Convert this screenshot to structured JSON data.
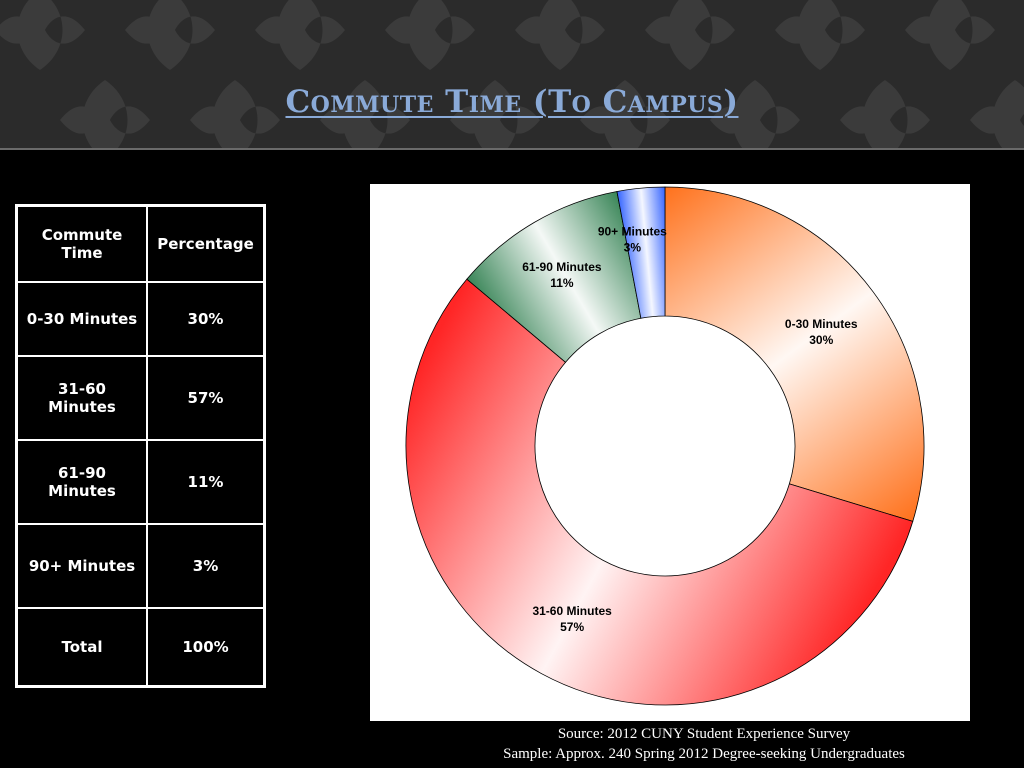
{
  "slide": {
    "title": "Commute Time (To Campus)"
  },
  "table": {
    "headers": [
      "Commute Time",
      "Percentage"
    ],
    "rows": [
      [
        "0-30 Minutes",
        "30%"
      ],
      [
        "31-60 Minutes",
        "57%"
      ],
      [
        "61-90 Minutes",
        "11%"
      ],
      [
        "90+ Minutes",
        "3%"
      ],
      [
        "Total",
        "100%"
      ]
    ]
  },
  "footer": {
    "source": "Source: 2012 CUNY Student Experience Survey",
    "sample": "Sample: Approx. 240 Spring 2012 Degree-seeking Undergraduates"
  },
  "colors": {
    "title": "#8aaad8",
    "background": "#000000",
    "header_band": "#2b2b2b"
  },
  "chart_data": {
    "type": "pie",
    "variant": "donut",
    "title": "",
    "categories": [
      "0-30 Minutes",
      "31-60 Minutes",
      "61-90 Minutes",
      "90+ Minutes"
    ],
    "values": [
      30,
      57,
      11,
      3
    ],
    "value_labels": [
      "30%",
      "57%",
      "11%",
      "3%"
    ],
    "colors": [
      "#ff6a10",
      "#ff1a1a",
      "#2f7f4f",
      "#2a5cff"
    ],
    "legend": "none",
    "data_labels": "on-slice"
  }
}
